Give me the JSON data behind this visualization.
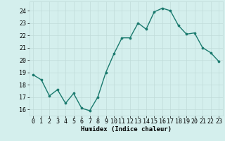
{
  "x": [
    0,
    1,
    2,
    3,
    4,
    5,
    6,
    7,
    8,
    9,
    10,
    11,
    12,
    13,
    14,
    15,
    16,
    17,
    18,
    19,
    20,
    21,
    22,
    23
  ],
  "y": [
    18.8,
    18.4,
    17.1,
    17.6,
    16.5,
    17.3,
    16.1,
    15.9,
    17.0,
    19.0,
    20.5,
    21.8,
    21.8,
    23.0,
    22.5,
    23.9,
    24.2,
    24.0,
    22.8,
    22.1,
    22.2,
    21.0,
    20.6,
    19.9
  ],
  "xlabel": "Humidex (Indice chaleur)",
  "ylim": [
    15.5,
    24.75
  ],
  "xlim": [
    -0.5,
    23.5
  ],
  "yticks": [
    16,
    17,
    18,
    19,
    20,
    21,
    22,
    23,
    24
  ],
  "xticks": [
    0,
    1,
    2,
    3,
    4,
    5,
    6,
    7,
    8,
    9,
    10,
    11,
    12,
    13,
    14,
    15,
    16,
    17,
    18,
    19,
    20,
    21,
    22,
    23
  ],
  "line_color": "#1a7a6e",
  "marker_color": "#1a7a6e",
  "bg_color": "#d4efed",
  "grid_color": "#c0dcd9",
  "label_fontsize": 6.5,
  "tick_fontsize": 6.0,
  "line_width": 1.0,
  "marker_size": 2.2
}
